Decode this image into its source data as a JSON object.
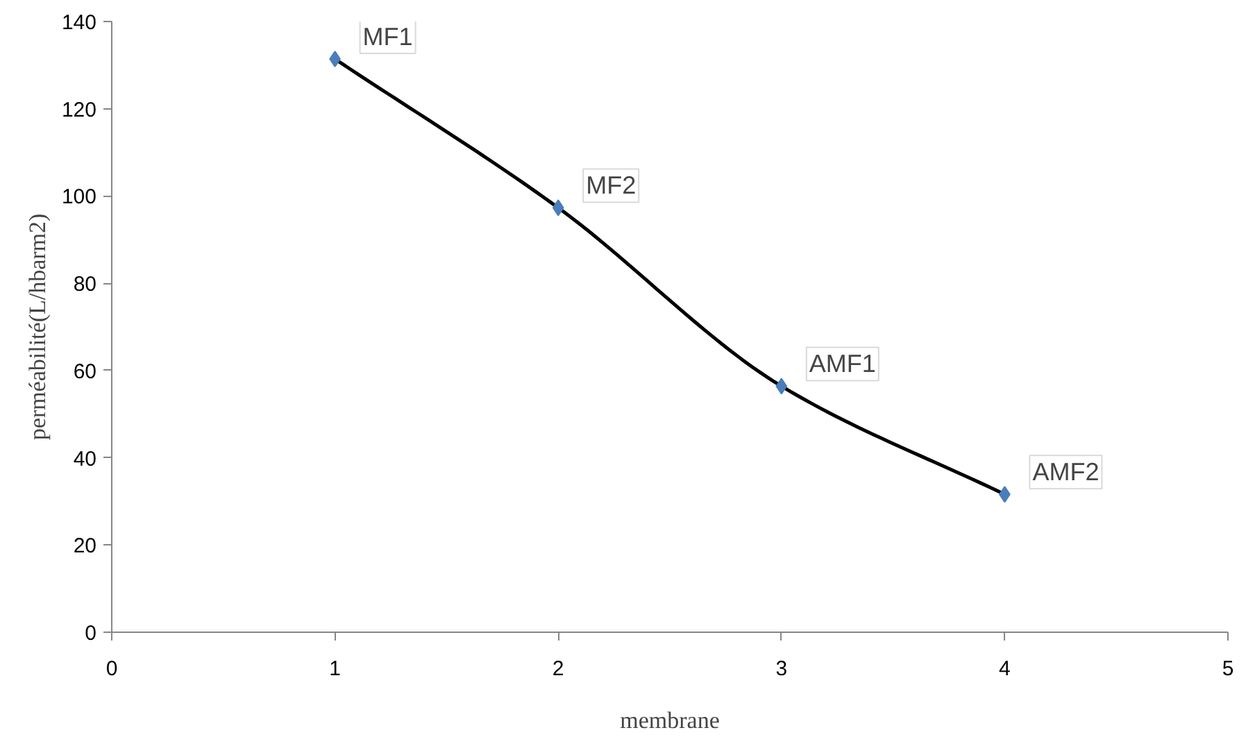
{
  "chart_data": {
    "type": "line",
    "xlabel": "membrane",
    "ylabel": "perméabilité(L/hbarm2)",
    "x": [
      1,
      2,
      3,
      4
    ],
    "series": [
      {
        "color": "#4a7ebb",
        "values": [
          131.4,
          97.3,
          56.4,
          31.6
        ]
      }
    ],
    "xlim": [
      0,
      5
    ],
    "xticks": [
      0,
      1,
      2,
      3,
      4,
      5
    ],
    "ylim": [
      0,
      140
    ],
    "yticks": [
      0,
      20,
      40,
      60,
      80,
      100,
      120,
      140
    ],
    "grid": false,
    "marker": "diamond",
    "line_style": "solid",
    "annotations": [
      {
        "text": "MF1",
        "x": 1,
        "y": 131.4
      },
      {
        "text": "MF2",
        "x": 2,
        "y": 97.3
      },
      {
        "text": "AMF1",
        "x": 3,
        "y": 56.4
      },
      {
        "text": "AMF2",
        "x": 4,
        "y": 31.6
      }
    ]
  }
}
